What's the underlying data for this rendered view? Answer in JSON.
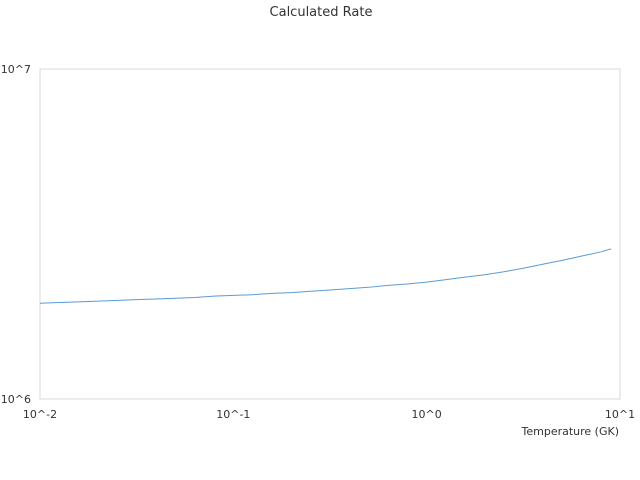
{
  "chart_data": {
    "type": "line",
    "title": "Calculated Rate",
    "xlabel": "Temperature (GK)",
    "ylabel": "",
    "x_scale": "log",
    "y_scale": "log",
    "xlim": [
      0.01,
      10
    ],
    "ylim": [
      1000000,
      10000000
    ],
    "x_ticks": [
      {
        "value": 0.01,
        "label": "10^-2"
      },
      {
        "value": 0.1,
        "label": "10^-1"
      },
      {
        "value": 1,
        "label": "10^0"
      },
      {
        "value": 10,
        "label": "10^1"
      }
    ],
    "y_ticks": [
      {
        "value": 1000000,
        "label": "10^6"
      },
      {
        "value": 10000000,
        "label": "10^7"
      }
    ],
    "grid": false,
    "legend": "none",
    "line_color": "#5b9bd5",
    "series": [
      {
        "x": [
          0.01,
          0.0126,
          0.0158,
          0.02,
          0.0251,
          0.0316,
          0.0398,
          0.0501,
          0.0631,
          0.0794,
          0.1,
          0.126,
          0.158,
          0.2,
          0.251,
          0.316,
          0.398,
          0.501,
          0.631,
          0.794,
          1,
          1.26,
          1.58,
          2,
          2.51,
          3.16,
          3.98,
          5.01,
          6.31,
          7.94,
          9.0
        ],
        "values": [
          1950000,
          1960000,
          1970000,
          1980000,
          1990000,
          2000000,
          2010000,
          2020000,
          2030000,
          2050000,
          2060000,
          2070000,
          2090000,
          2100000,
          2120000,
          2140000,
          2160000,
          2180000,
          2210000,
          2230000,
          2260000,
          2300000,
          2340000,
          2380000,
          2430000,
          2490000,
          2560000,
          2630000,
          2710000,
          2790000,
          2850000
        ]
      }
    ]
  }
}
